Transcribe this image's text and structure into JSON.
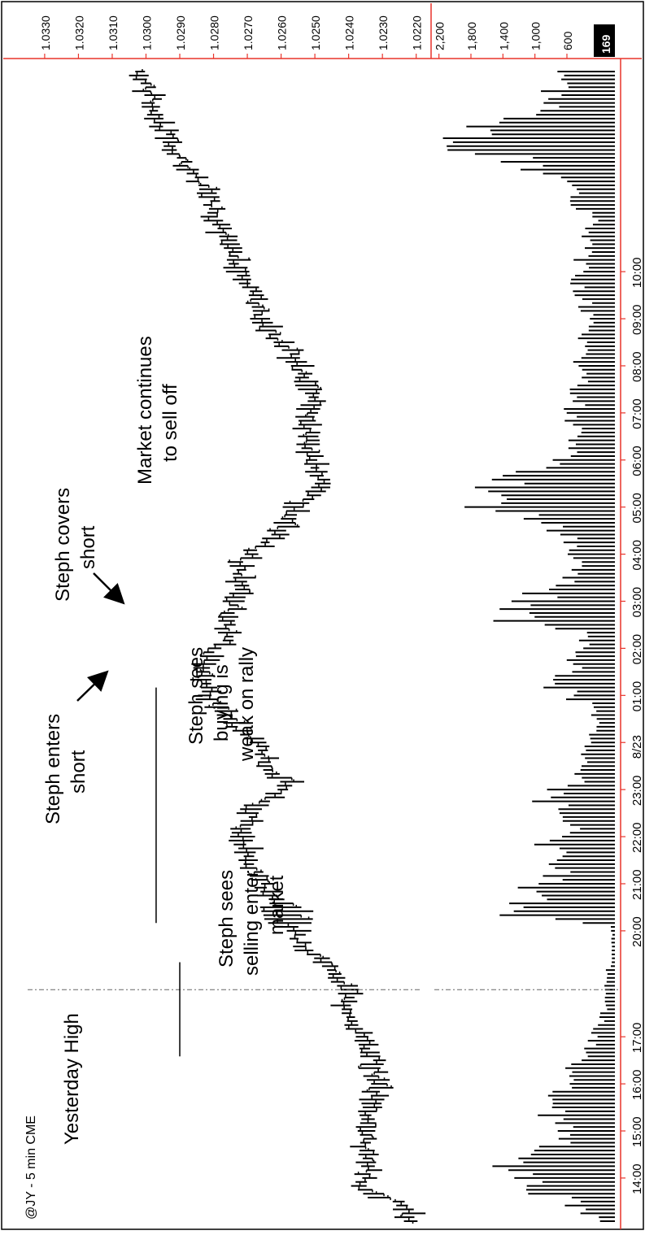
{
  "chart_data": {
    "type": "bar",
    "title": "@JY - 5 min CME",
    "orientation": "rotated-90-clockwise",
    "price_panel": {
      "type": "ohlc",
      "axis_ticks": [
        "1.0330",
        "1.0320",
        "1.0310",
        "1.0300",
        "1.0290",
        "1.0280",
        "1.0270",
        "1.0260",
        "1.0250",
        "1.0240",
        "1.0230",
        "1.0220"
      ],
      "ylim": [
        1.0218,
        1.0336
      ],
      "keypoints": [
        [
          0,
          1.0221
        ],
        [
          4,
          1.0223
        ],
        [
          8,
          1.0236
        ],
        [
          14,
          1.0233
        ],
        [
          20,
          1.0236
        ],
        [
          30,
          1.0232
        ],
        [
          36,
          1.0232
        ],
        [
          42,
          1.0233
        ],
        [
          46,
          1.0236
        ],
        [
          50,
          1.0238
        ],
        [
          54,
          1.0242
        ],
        [
          58,
          1.024
        ],
        [
          64,
          1.0244
        ],
        [
          70,
          1.0253
        ],
        [
          78,
          1.0258
        ],
        [
          85,
          1.0265
        ],
        [
          92,
          1.027
        ],
        [
          100,
          1.0272
        ],
        [
          106,
          1.0266
        ],
        [
          111,
          1.0257
        ],
        [
          115,
          1.0263
        ],
        [
          121,
          1.0267
        ],
        [
          126,
          1.0274
        ],
        [
          132,
          1.028
        ],
        [
          140,
          1.0283
        ],
        [
          150,
          1.0276
        ],
        [
          158,
          1.0274
        ],
        [
          168,
          1.0272
        ],
        [
          176,
          1.026
        ],
        [
          182,
          1.0255
        ],
        [
          188,
          1.0248
        ],
        [
          195,
          1.025
        ],
        [
          202,
          1.0252
        ],
        [
          208,
          1.025
        ],
        [
          214,
          1.0252
        ],
        [
          220,
          1.0256
        ],
        [
          226,
          1.0262
        ],
        [
          232,
          1.0266
        ],
        [
          238,
          1.027
        ],
        [
          246,
          1.0275
        ],
        [
          254,
          1.0279
        ],
        [
          262,
          1.0282
        ],
        [
          269,
          1.0288
        ],
        [
          274,
          1.0292
        ],
        [
          280,
          1.0296
        ],
        [
          286,
          1.0298
        ],
        [
          292,
          1.0303
        ]
      ]
    },
    "volume_panel": {
      "type": "bar",
      "axis_ticks": [
        "2,200",
        "1,800",
        "1,400",
        "1,000",
        "600"
      ],
      "last_value": "169",
      "ylim": [
        0,
        2400
      ],
      "keypoints": [
        [
          0,
          200
        ],
        [
          5,
          650
        ],
        [
          9,
          1250
        ],
        [
          12,
          950
        ],
        [
          14,
          1300
        ],
        [
          16,
          1050
        ],
        [
          22,
          700
        ],
        [
          28,
          850
        ],
        [
          34,
          650
        ],
        [
          42,
          450
        ],
        [
          48,
          250
        ],
        [
          55,
          120
        ],
        [
          62,
          150
        ],
        [
          66,
          40
        ],
        [
          70,
          40
        ],
        [
          75,
          50
        ],
        [
          78,
          1250
        ],
        [
          81,
          1300
        ],
        [
          86,
          1050
        ],
        [
          92,
          650
        ],
        [
          96,
          900
        ],
        [
          100,
          500
        ],
        [
          108,
          950
        ],
        [
          112,
          500
        ],
        [
          118,
          400
        ],
        [
          124,
          300
        ],
        [
          130,
          250
        ],
        [
          136,
          800
        ],
        [
          140,
          600
        ],
        [
          146,
          450
        ],
        [
          150,
          350
        ],
        [
          153,
          1500
        ],
        [
          156,
          1300
        ],
        [
          158,
          1150
        ],
        [
          164,
          700
        ],
        [
          170,
          500
        ],
        [
          178,
          850
        ],
        [
          182,
          1900
        ],
        [
          186,
          1600
        ],
        [
          190,
          1200
        ],
        [
          196,
          500
        ],
        [
          204,
          600
        ],
        [
          212,
          500
        ],
        [
          218,
          450
        ],
        [
          224,
          400
        ],
        [
          230,
          350
        ],
        [
          240,
          500
        ],
        [
          248,
          400
        ],
        [
          256,
          300
        ],
        [
          263,
          700
        ],
        [
          268,
          1100
        ],
        [
          272,
          1700
        ],
        [
          276,
          2150
        ],
        [
          280,
          1400
        ],
        [
          286,
          850
        ],
        [
          292,
          700
        ]
      ]
    },
    "x_ticks": [
      {
        "label": "14:00",
        "bar": 11
      },
      {
        "label": "15:00",
        "bar": 23
      },
      {
        "label": "16:00",
        "bar": 35
      },
      {
        "label": "17:00",
        "bar": 47
      },
      {
        "label": "20:00",
        "bar": 74
      },
      {
        "label": "21:00",
        "bar": 86
      },
      {
        "label": "22:00",
        "bar": 98
      },
      {
        "label": "23:00",
        "bar": 110
      },
      {
        "label": "8/23",
        "bar": 122
      },
      {
        "label": "01:00",
        "bar": 134
      },
      {
        "label": "02:00",
        "bar": 146
      },
      {
        "label": "03:00",
        "bar": 158
      },
      {
        "label": "04:00",
        "bar": 170
      },
      {
        "label": "05:00",
        "bar": 182
      },
      {
        "label": "06:00",
        "bar": 194
      },
      {
        "label": "07:00",
        "bar": 206
      },
      {
        "label": "08:00",
        "bar": 218
      },
      {
        "label": "09:00",
        "bar": 230
      },
      {
        "label": "10:00",
        "bar": 242
      }
    ],
    "session_break_bar": 59,
    "yesterday_high": 1.029,
    "entry_level": 1.0297,
    "annotations": {
      "yesterday_high": "Yesterday High",
      "steph_sees_selling": [
        "Steph sees",
        "selling enter",
        "market"
      ],
      "steph_enters": [
        "Steph enters",
        "short"
      ],
      "steph_sees_buying": [
        "Steph sees",
        "buying is",
        "weak on rally"
      ],
      "steph_covers": [
        "Steph covers",
        "short"
      ],
      "market_continues": [
        "Market continues",
        "to sell off"
      ]
    },
    "colors": {
      "bars": "#000000",
      "axis": "#e8332a",
      "last_value_bg": "#000000",
      "last_value_text": "#ffffff",
      "session_line": "#666666"
    }
  }
}
